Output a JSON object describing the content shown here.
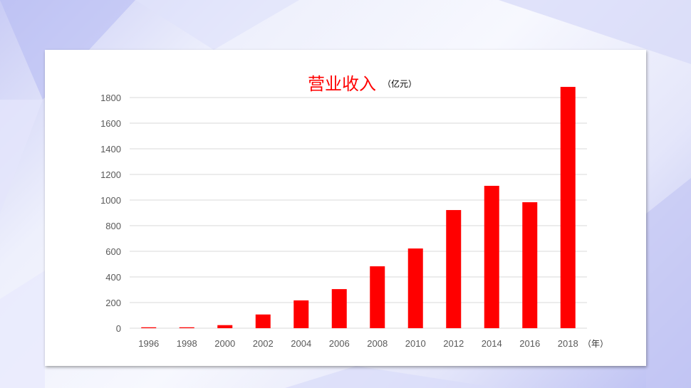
{
  "chart_data": {
    "type": "bar",
    "title": "营业收入",
    "unit_label": "（亿元）",
    "xlabel": "（年）",
    "ylabel": "",
    "categories": [
      "1996",
      "1998",
      "2000",
      "2002",
      "2004",
      "2006",
      "2008",
      "2010",
      "2012",
      "2014",
      "2016",
      "2018"
    ],
    "values": [
      7,
      7,
      24,
      107,
      217,
      305,
      483,
      622,
      922,
      1111,
      983,
      1883
    ],
    "ylim": [
      0,
      1800
    ],
    "yticks": [
      0,
      200,
      400,
      600,
      800,
      1000,
      1200,
      1400,
      1600,
      1800
    ],
    "grid": true,
    "bar_color": "#ff0000"
  }
}
